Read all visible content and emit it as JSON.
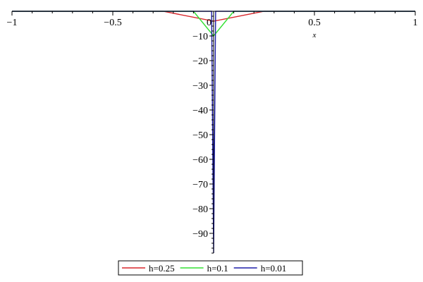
{
  "chart_data": {
    "type": "line",
    "title": "",
    "xlabel": "x",
    "ylabel": "",
    "xlim": [
      -1,
      1
    ],
    "ylim": [
      -98,
      0
    ],
    "x_ticks": [
      -1,
      -0.5,
      0,
      0.5,
      1
    ],
    "x_tick_labels": [
      "−1",
      "−0.5",
      "0",
      "0.5",
      "1"
    ],
    "y_ticks": [
      -10,
      -20,
      -30,
      -40,
      -50,
      -60,
      -70,
      -80,
      -90
    ],
    "y_tick_labels": [
      "−10",
      "−20",
      "−30",
      "−40",
      "−50",
      "−60",
      "−70",
      "−80",
      "−90"
    ],
    "grid": false,
    "legend_position": "bottom",
    "series": [
      {
        "name": "h=0.25",
        "color": "#d9262b",
        "x": [
          -1,
          -0.25,
          0,
          0.25,
          1
        ],
        "y": [
          0,
          0,
          -4,
          0,
          0
        ]
      },
      {
        "name": "h=0.1",
        "color": "#33e033",
        "x": [
          -1,
          -0.1,
          0,
          0.1,
          1
        ],
        "y": [
          0,
          0,
          -10,
          0,
          0
        ]
      },
      {
        "name": "h=0.01",
        "color": "#1f1fa8",
        "x": [
          -1,
          -0.01,
          0,
          0.01,
          1
        ],
        "y": [
          0,
          0,
          -98,
          0,
          0
        ]
      }
    ]
  }
}
